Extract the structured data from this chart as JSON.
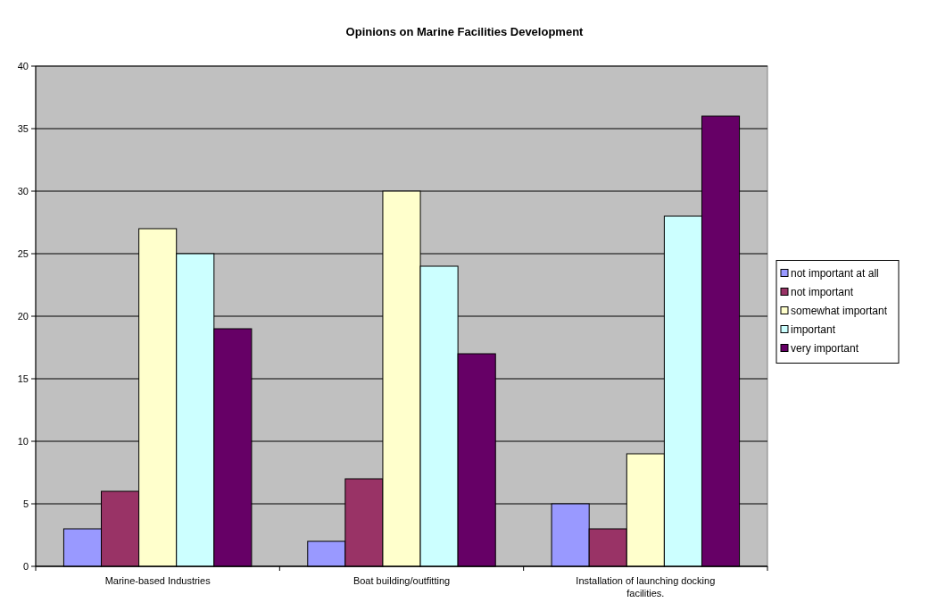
{
  "chart_data": {
    "type": "bar",
    "title": "Opinions on Marine Facilities Development",
    "categories": [
      "Marine-based Industries",
      "Boat building/outfitting",
      "Installation of launching docking facilities."
    ],
    "series": [
      {
        "name": "not important at all",
        "color": "#9999ff",
        "values": [
          3,
          2,
          5
        ]
      },
      {
        "name": "not important",
        "color": "#993366",
        "values": [
          6,
          7,
          3
        ]
      },
      {
        "name": "somewhat important",
        "color": "#ffffcc",
        "values": [
          27,
          30,
          9
        ]
      },
      {
        "name": "important",
        "color": "#ccffff",
        "values": [
          25,
          24,
          28
        ]
      },
      {
        "name": "very important",
        "color": "#660066",
        "values": [
          19,
          17,
          36
        ]
      }
    ],
    "ylim": [
      0,
      40
    ],
    "yticks": [
      0,
      5,
      10,
      15,
      20,
      25,
      30,
      35,
      40
    ],
    "grid": "y",
    "legend": "right"
  }
}
